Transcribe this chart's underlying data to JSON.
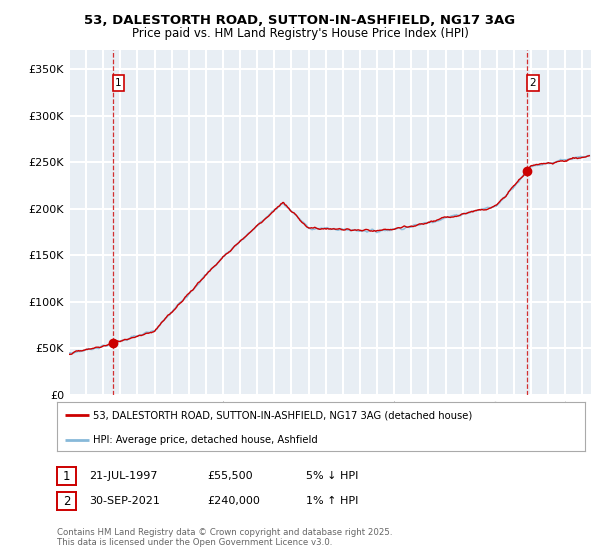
{
  "title_line1": "53, DALESTORTH ROAD, SUTTON-IN-ASHFIELD, NG17 3AG",
  "title_line2": "Price paid vs. HM Land Registry's House Price Index (HPI)",
  "ylim": [
    0,
    370000
  ],
  "yticks": [
    0,
    50000,
    100000,
    150000,
    200000,
    250000,
    300000,
    350000
  ],
  "ytick_labels": [
    "£0",
    "£50K",
    "£100K",
    "£150K",
    "£200K",
    "£250K",
    "£300K",
    "£350K"
  ],
  "xlim_start": 1995.0,
  "xlim_end": 2025.5,
  "xticks": [
    1995,
    1996,
    1997,
    1998,
    1999,
    2000,
    2001,
    2002,
    2003,
    2004,
    2005,
    2006,
    2007,
    2008,
    2009,
    2010,
    2011,
    2012,
    2013,
    2014,
    2015,
    2016,
    2017,
    2018,
    2019,
    2020,
    2021,
    2022,
    2023,
    2024,
    2025
  ],
  "sale1_date": 1997.55,
  "sale1_price": 55500,
  "sale1_label": "1",
  "sale2_date": 2021.75,
  "sale2_price": 240000,
  "sale2_label": "2",
  "line_color_price": "#cc0000",
  "line_color_hpi": "#87b9d9",
  "marker_color": "#cc0000",
  "background_color": "#e8eef4",
  "grid_color": "#ffffff",
  "legend_label_price": "53, DALESTORTH ROAD, SUTTON-IN-ASHFIELD, NG17 3AG (detached house)",
  "legend_label_hpi": "HPI: Average price, detached house, Ashfield",
  "footer": "Contains HM Land Registry data © Crown copyright and database right 2025.\nThis data is licensed under the Open Government Licence v3.0."
}
